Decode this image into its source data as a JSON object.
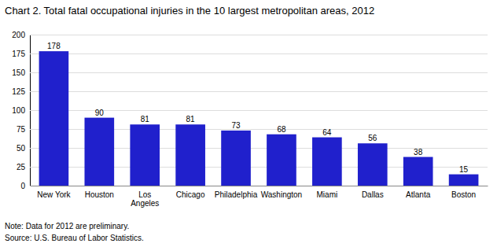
{
  "chart_data": {
    "type": "bar",
    "title": "Chart 2. Total fatal occupational injuries in the 10 largest metropolitan areas, 2012",
    "categories": [
      "New York",
      "Houston",
      "Los\nAngeles",
      "Chicago",
      "Philadelphia",
      "Washington",
      "Miami",
      "Dallas",
      "Atlanta",
      "Boston"
    ],
    "values": [
      178,
      90,
      81,
      81,
      73,
      68,
      64,
      56,
      38,
      15
    ],
    "color": "#2020cc",
    "ylim": [
      0,
      200
    ],
    "yticks": [
      0,
      25,
      50,
      75,
      100,
      125,
      150,
      175,
      200
    ],
    "grid": true,
    "data_labels": true,
    "annotations": [
      "Note: Data for 2012 are preliminary.",
      "Source: U.S. Bureau of Labor Statistics."
    ]
  }
}
